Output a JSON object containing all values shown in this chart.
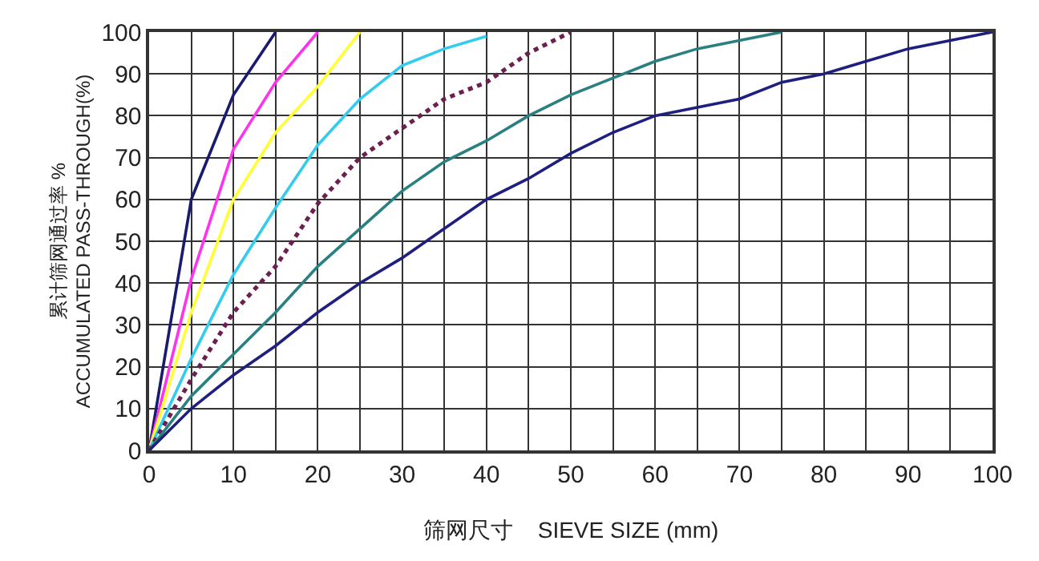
{
  "chart_data": {
    "type": "line",
    "xlabel": "筛网尺寸    SIEVE SIZE (mm)",
    "ylabel": "累计筛网通过率 %\nACCUMULATED PASS-THROUGH(%)",
    "xlim": [
      0,
      100
    ],
    "ylim": [
      0,
      100
    ],
    "xticks": [
      0,
      {
        "value": 5,
        "label": null
      },
      10,
      {
        "value": 15,
        "label": null
      },
      20,
      {
        "value": 25,
        "label": null
      },
      30,
      {
        "value": 35,
        "label": null
      },
      40,
      {
        "value": 45,
        "label": null
      },
      50,
      {
        "value": 55,
        "label": null
      },
      60,
      {
        "value": 65,
        "label": null
      },
      70,
      {
        "value": 75,
        "label": null
      },
      80,
      {
        "value": 85,
        "label": null
      },
      90,
      {
        "value": 95,
        "label": null
      },
      100
    ],
    "yticks": [
      0,
      10,
      20,
      30,
      40,
      50,
      60,
      70,
      80,
      90,
      100
    ],
    "grid": true,
    "marker": "none",
    "series": [
      {
        "color": "#1a1a6e",
        "x": [
          0,
          5,
          10,
          15
        ],
        "values": [
          0,
          60,
          85,
          100
        ]
      },
      {
        "color": "#ff33ee",
        "x": [
          0,
          5,
          10,
          15,
          20
        ],
        "values": [
          0,
          41,
          72,
          88,
          100
        ]
      },
      {
        "color": "#ffff33",
        "x": [
          0,
          5,
          10,
          15,
          20,
          25
        ],
        "values": [
          0,
          33,
          60,
          76,
          87,
          100
        ]
      },
      {
        "color": "#33ccee",
        "x": [
          0,
          5,
          10,
          15,
          20,
          25,
          30,
          35,
          40
        ],
        "values": [
          0,
          22,
          42,
          58,
          73,
          84,
          92,
          96,
          99
        ]
      },
      {
        "color": "#6b2050",
        "line_style": "dotted",
        "x": [
          0,
          5,
          10,
          15,
          20,
          25,
          30,
          35,
          40,
          45,
          50
        ],
        "values": [
          0,
          17,
          33,
          44,
          59,
          70,
          77,
          84,
          88,
          95,
          100
        ]
      },
      {
        "color": "#2a8080",
        "x": [
          0,
          5,
          10,
          15,
          20,
          25,
          30,
          35,
          40,
          45,
          50,
          55,
          60,
          65,
          70,
          75
        ],
        "values": [
          0,
          13,
          23,
          33,
          44,
          53,
          62,
          69,
          74,
          80,
          85,
          89,
          93,
          96,
          98,
          100
        ]
      },
      {
        "color": "#1f1f80",
        "x": [
          0,
          5,
          10,
          15,
          20,
          25,
          30,
          35,
          40,
          45,
          50,
          55,
          60,
          65,
          70,
          75,
          80,
          85,
          90,
          95,
          100
        ],
        "values": [
          0,
          10,
          18,
          25,
          33,
          40,
          46,
          53,
          60,
          65,
          71,
          76,
          80,
          82,
          84,
          88,
          90,
          93,
          96,
          98,
          100
        ]
      }
    ]
  }
}
